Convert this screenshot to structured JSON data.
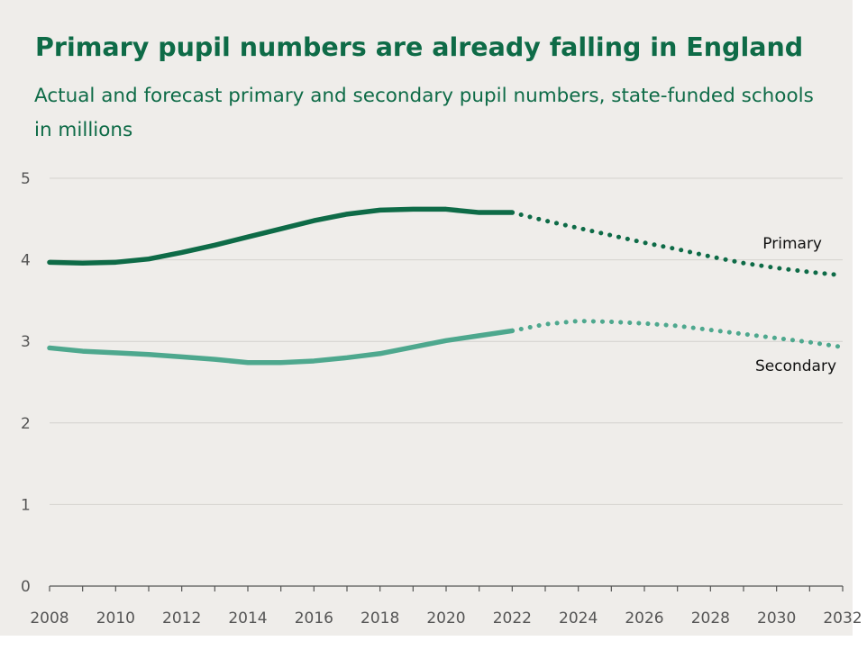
{
  "header": {
    "title": "Primary pupil numbers are already falling in England",
    "subtitle": "Actual and forecast primary and secondary pupil numbers, state-funded schools in millions"
  },
  "colors": {
    "background": "#efedea",
    "title": "#0e6b47",
    "primary_line": "#0e6b47",
    "secondary_line": "#4ea88e",
    "grid": "#d4d2ce",
    "axis": "#555555",
    "tick_label": "#555555",
    "series_label": "#111111"
  },
  "chart_data": {
    "type": "line",
    "x": [
      2008,
      2009,
      2010,
      2011,
      2012,
      2013,
      2014,
      2015,
      2016,
      2017,
      2018,
      2019,
      2020,
      2021,
      2022,
      2023,
      2024,
      2025,
      2026,
      2027,
      2028,
      2029,
      2030,
      2031,
      2032
    ],
    "forecast_from": 2022,
    "series": [
      {
        "name": "Primary",
        "values": [
          3.97,
          3.96,
          3.97,
          4.01,
          4.09,
          4.18,
          4.28,
          4.38,
          4.48,
          4.56,
          4.61,
          4.62,
          4.62,
          4.58,
          4.58,
          4.48,
          4.39,
          4.3,
          4.21,
          4.13,
          4.04,
          3.96,
          3.9,
          3.85,
          3.81
        ]
      },
      {
        "name": "Secondary",
        "values": [
          2.92,
          2.88,
          2.86,
          2.84,
          2.81,
          2.78,
          2.74,
          2.74,
          2.76,
          2.8,
          2.85,
          2.93,
          3.01,
          3.07,
          3.13,
          3.21,
          3.25,
          3.24,
          3.22,
          3.19,
          3.14,
          3.09,
          3.04,
          2.99,
          2.93
        ]
      }
    ],
    "ylim": [
      0,
      5
    ],
    "yticks": [
      0,
      1,
      2,
      3,
      4,
      5
    ],
    "xlim": [
      2008,
      2032
    ],
    "xticks": [
      2008,
      2010,
      2012,
      2014,
      2016,
      2018,
      2020,
      2022,
      2024,
      2026,
      2028,
      2030,
      2032
    ],
    "grid": "horizontal",
    "xlabel": "",
    "ylabel": ""
  }
}
